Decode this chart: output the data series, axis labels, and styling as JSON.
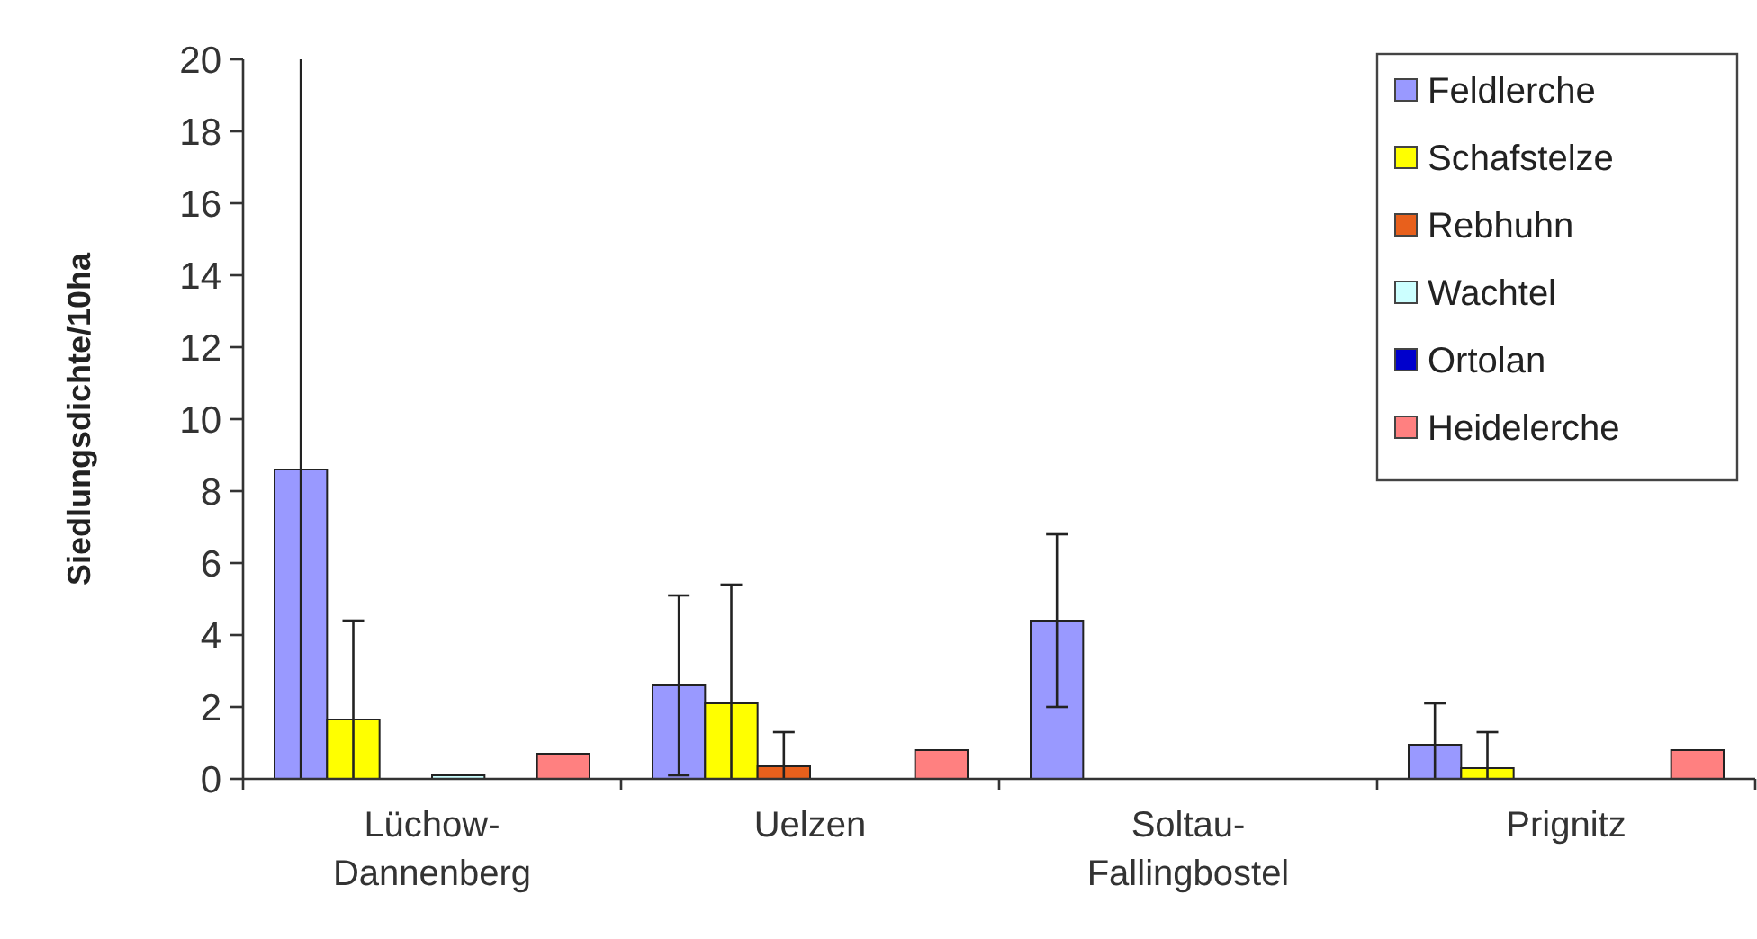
{
  "chart_data": {
    "type": "bar",
    "ylabel": "Siedlungsdichte/10ha",
    "categories": [
      "Lüchow-Dannenberg",
      "Uelzen",
      "Soltau-Fallingbostel",
      "Prignitz"
    ],
    "series": [
      {
        "name": "Feldlerche",
        "color": "#9999ff",
        "values": [
          8.6,
          2.6,
          4.4,
          0.95
        ],
        "errors": [
          [
            0,
            20
          ],
          [
            0.1,
            5.1
          ],
          [
            2.0,
            6.8
          ],
          [
            0,
            2.1
          ]
        ]
      },
      {
        "name": "Schafstelze",
        "color": "#ffff00",
        "values": [
          1.65,
          2.1,
          0,
          0.3
        ],
        "errors": [
          [
            0,
            4.4
          ],
          [
            0,
            5.4
          ],
          null,
          [
            0,
            1.3
          ]
        ]
      },
      {
        "name": "Rebhuhn",
        "color": "#e8601c",
        "values": [
          0,
          0.35,
          0,
          0
        ],
        "errors": [
          null,
          [
            0,
            1.3
          ],
          null,
          null
        ]
      },
      {
        "name": "Wachtel",
        "color": "#ccffff",
        "values": [
          0.1,
          0,
          0,
          0
        ]
      },
      {
        "name": "Ortolan",
        "color": "#0000cc",
        "values": [
          0,
          0,
          0,
          0
        ]
      },
      {
        "name": "Heidelerche",
        "color": "#ff8080",
        "values": [
          0.7,
          0.8,
          0,
          0.8
        ]
      }
    ],
    "ylim": [
      0,
      20
    ],
    "yticks": [
      0,
      2,
      4,
      6,
      8,
      10,
      12,
      14,
      16,
      18,
      20
    ],
    "grid": false,
    "legend": "top right"
  }
}
